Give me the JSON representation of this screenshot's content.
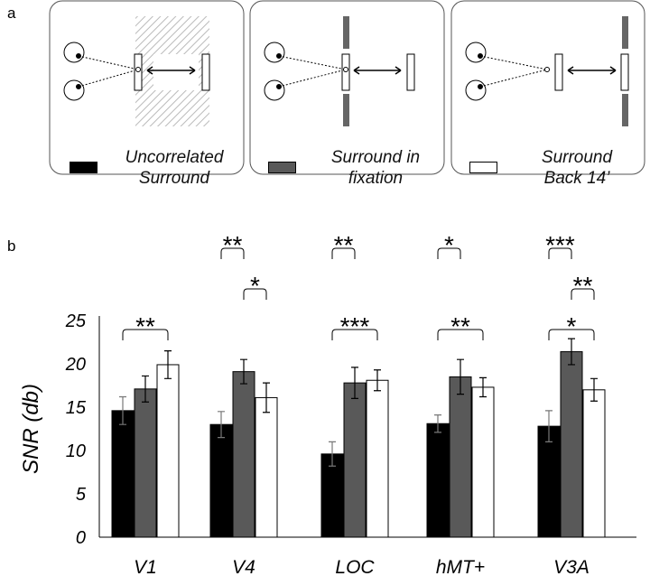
{
  "panel_labels": [
    "a",
    "b"
  ],
  "chart_data": {
    "type": "bar",
    "y_label": "SNR (db)",
    "categories": [
      "V1",
      "V4",
      "LOC",
      "hMT+",
      "V3A"
    ],
    "series": [
      {
        "name": "Uncorrelated Surround",
        "color": "#000000",
        "values": [
          14.6,
          13.0,
          9.6,
          13.1,
          12.8
        ],
        "errors": [
          1.6,
          1.5,
          1.4,
          1.0,
          1.8
        ]
      },
      {
        "name": "Surround in fixation",
        "color": "#595959",
        "values": [
          17.1,
          19.1,
          17.8,
          18.5,
          21.4
        ],
        "errors": [
          1.5,
          1.4,
          1.8,
          2.0,
          1.5
        ]
      },
      {
        "name": "Surround Back 14’",
        "color": "#ffffff",
        "values": [
          19.9,
          16.1,
          18.1,
          17.3,
          17.0
        ],
        "errors": [
          1.6,
          1.7,
          1.2,
          1.1,
          1.3
        ]
      }
    ],
    "ylim": [
      0,
      25
    ],
    "yticks": [
      0,
      5,
      10,
      15,
      20,
      25
    ],
    "significance": [
      [
        {
          "between": [
            0,
            2
          ],
          "label": "**"
        }
      ],
      [
        {
          "between": [
            0,
            1
          ],
          "label": "**"
        },
        {
          "between": [
            1,
            2
          ],
          "label": "*"
        }
      ],
      [
        {
          "between": [
            0,
            1
          ],
          "label": "**"
        },
        {
          "between": [
            0,
            2
          ],
          "label": "***"
        }
      ],
      [
        {
          "between": [
            0,
            1
          ],
          "label": "*"
        },
        {
          "between": [
            0,
            2
          ],
          "label": "**"
        }
      ],
      [
        {
          "between": [
            0,
            1
          ],
          "label": "***"
        },
        {
          "between": [
            1,
            2
          ],
          "label": "**"
        },
        {
          "between": [
            0,
            2
          ],
          "label": "*"
        }
      ]
    ]
  }
}
